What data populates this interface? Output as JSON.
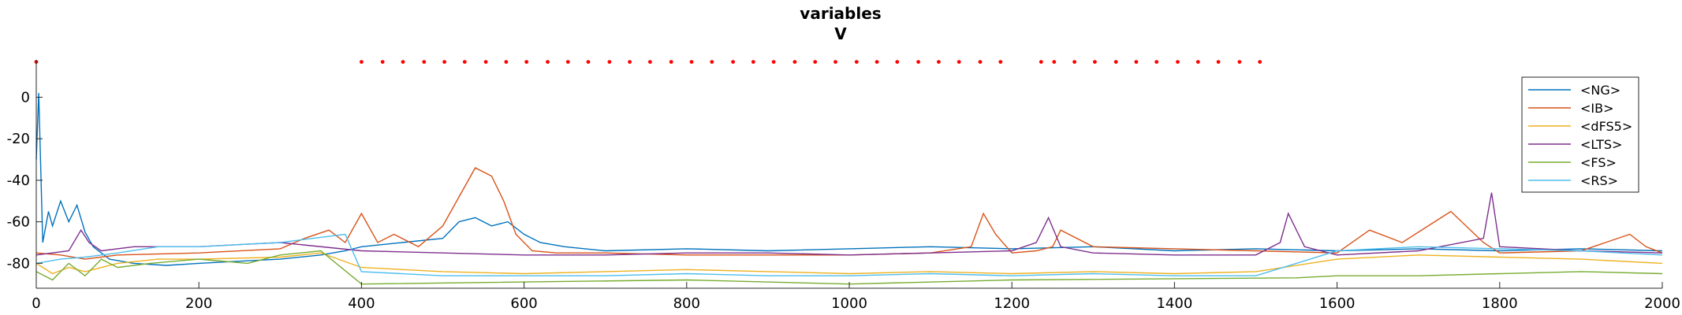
{
  "chart_data": {
    "type": "line",
    "title": "variables",
    "subtitle": "V",
    "xlabel": "",
    "ylabel": "",
    "xlim": [
      0,
      2000
    ],
    "ylim": [
      -92,
      18
    ],
    "x_ticks": [
      0,
      200,
      400,
      600,
      800,
      1000,
      1200,
      1400,
      1600,
      1800,
      2000
    ],
    "y_ticks": [
      -80,
      -60,
      -40,
      -20,
      0
    ],
    "grid": false,
    "legend_position": "top-right",
    "legend_colors": [
      "#0072BD",
      "#D95319",
      "#EDB120",
      "#7E2F8E",
      "#77AC30",
      "#4DBEEE"
    ],
    "raster_color": "#FF0000",
    "raster_marker_y": 17,
    "raster_times": [
      0,
      400,
      426,
      451,
      477,
      502,
      527,
      553,
      578,
      603,
      629,
      654,
      679,
      705,
      730,
      755,
      781,
      806,
      831,
      857,
      882,
      907,
      933,
      958,
      983,
      1009,
      1034,
      1059,
      1085,
      1110,
      1135,
      1161,
      1186,
      1236,
      1252,
      1277,
      1302,
      1328,
      1353,
      1378,
      1404,
      1429,
      1454,
      1480,
      1505
    ],
    "series": [
      {
        "name": "<NG>",
        "color": "#0072BD",
        "x": [
          0,
          3,
          8,
          15,
          20,
          30,
          40,
          50,
          60,
          70,
          90,
          120,
          160,
          200,
          250,
          300,
          350,
          380,
          400,
          450,
          500,
          520,
          540,
          560,
          580,
          600,
          620,
          650,
          700,
          800,
          900,
          1000,
          1100,
          1200,
          1300,
          1400,
          1500,
          1600,
          1700,
          1800,
          1900,
          2000
        ],
        "y": [
          -30,
          2,
          -70,
          -55,
          -62,
          -50,
          -60,
          -52,
          -65,
          -72,
          -78,
          -80,
          -81,
          -80,
          -79,
          -78,
          -76,
          -74,
          -72,
          -70,
          -68,
          -60,
          -58,
          -62,
          -60,
          -66,
          -70,
          -72,
          -74,
          -73,
          -74,
          -73,
          -72,
          -73,
          -72,
          -74,
          -73,
          -74,
          -73,
          -74,
          -73,
          -74
        ]
      },
      {
        "name": "<IB>",
        "color": "#D95319",
        "x": [
          0,
          30,
          60,
          100,
          200,
          300,
          330,
          360,
          380,
          400,
          420,
          440,
          470,
          500,
          520,
          540,
          560,
          575,
          590,
          610,
          640,
          700,
          800,
          900,
          1000,
          1100,
          1150,
          1165,
          1180,
          1200,
          1230,
          1250,
          1260,
          1300,
          1400,
          1500,
          1600,
          1640,
          1680,
          1720,
          1740,
          1780,
          1800,
          1900,
          1960,
          1980,
          2000
        ],
        "y": [
          -75,
          -76,
          -78,
          -76,
          -75,
          -73,
          -68,
          -64,
          -70,
          -56,
          -70,
          -66,
          -72,
          -62,
          -48,
          -34,
          -38,
          -50,
          -66,
          -74,
          -75,
          -75,
          -76,
          -76,
          -76,
          -75,
          -72,
          -56,
          -66,
          -75,
          -74,
          -72,
          -64,
          -72,
          -73,
          -74,
          -75,
          -64,
          -70,
          -60,
          -55,
          -70,
          -75,
          -74,
          -66,
          -72,
          -75
        ]
      },
      {
        "name": "<dFS5>",
        "color": "#EDB120",
        "x": [
          0,
          20,
          40,
          60,
          100,
          150,
          200,
          300,
          350,
          400,
          500,
          600,
          700,
          800,
          900,
          1000,
          1100,
          1200,
          1300,
          1400,
          1500,
          1600,
          1700,
          1800,
          1900,
          2000
        ],
        "y": [
          -80,
          -85,
          -82,
          -84,
          -80,
          -78,
          -78,
          -77,
          -75,
          -82,
          -84,
          -85,
          -84,
          -83,
          -84,
          -85,
          -84,
          -85,
          -84,
          -85,
          -84,
          -78,
          -76,
          -77,
          -78,
          -80
        ]
      },
      {
        "name": "<LTS>",
        "color": "#7E2F8E",
        "x": [
          0,
          40,
          55,
          65,
          80,
          120,
          200,
          250,
          300,
          400,
          500,
          600,
          700,
          800,
          900,
          1000,
          1100,
          1200,
          1230,
          1245,
          1260,
          1300,
          1400,
          1500,
          1530,
          1540,
          1560,
          1600,
          1700,
          1780,
          1790,
          1800,
          1900,
          2000
        ],
        "y": [
          -76,
          -74,
          -64,
          -70,
          -74,
          -72,
          -72,
          -71,
          -70,
          -74,
          -75,
          -76,
          -76,
          -75,
          -75,
          -76,
          -75,
          -74,
          -70,
          -58,
          -72,
          -75,
          -76,
          -76,
          -70,
          -56,
          -72,
          -76,
          -74,
          -68,
          -46,
          -72,
          -74,
          -75
        ]
      },
      {
        "name": "<FS>",
        "color": "#77AC30",
        "x": [
          0,
          20,
          40,
          60,
          80,
          100,
          140,
          200,
          260,
          300,
          350,
          400,
          800,
          1000,
          1200,
          1550,
          1600,
          1700,
          1800,
          1900,
          2000
        ],
        "y": [
          -84,
          -88,
          -80,
          -86,
          -78,
          -82,
          -80,
          -78,
          -80,
          -76,
          -74,
          -90,
          -88,
          -90,
          -88,
          -87,
          -86,
          -86,
          -85,
          -84,
          -85
        ]
      },
      {
        "name": "<RS>",
        "color": "#4DBEEE",
        "x": [
          0,
          30,
          60,
          100,
          150,
          200,
          250,
          300,
          340,
          380,
          400,
          500,
          600,
          700,
          800,
          900,
          1000,
          1100,
          1200,
          1300,
          1400,
          1500,
          1550,
          1600,
          1700,
          1800,
          1900,
          2000
        ],
        "y": [
          -80,
          -78,
          -77,
          -75,
          -72,
          -72,
          -71,
          -70,
          -68,
          -66,
          -84,
          -86,
          -86,
          -86,
          -85,
          -86,
          -86,
          -85,
          -86,
          -85,
          -86,
          -86,
          -80,
          -74,
          -72,
          -73,
          -74,
          -76
        ]
      }
    ]
  }
}
